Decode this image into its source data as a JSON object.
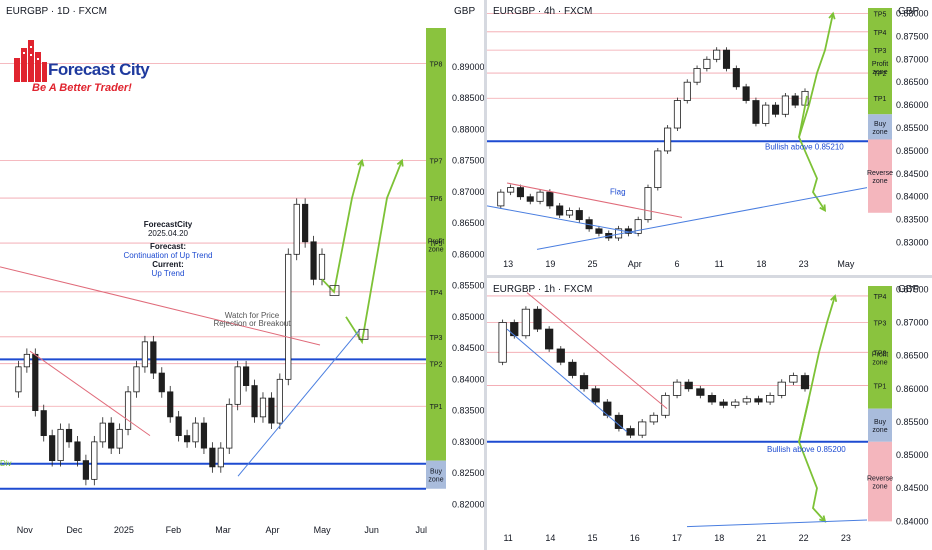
{
  "logo": {
    "brand": "Forecast City",
    "tagline": "Be A Better Trader!"
  },
  "chart_data": [
    {
      "type": "candlestick",
      "title": "EURGBP · 1D · FXCM",
      "currency_label": "GBP",
      "ylim": [
        0.8175,
        0.8962
      ],
      "y_ticks": [
        "0.89000",
        "0.88500",
        "0.88000",
        "0.87500",
        "0.87000",
        "0.86500",
        "0.86000",
        "0.85500",
        "0.85000",
        "0.84500",
        "0.84000",
        "0.83500",
        "0.83000",
        "0.82500",
        "0.82000"
      ],
      "x_ticks": [
        "Nov",
        "Dec",
        "2025",
        "Feb",
        "Mar",
        "Apr",
        "May",
        "Jun",
        "Jul"
      ],
      "target_levels": [
        {
          "label": "TP8",
          "value": 0.8905
        },
        {
          "label": "TP7",
          "value": 0.875
        },
        {
          "label": "TP6",
          "value": 0.869
        },
        {
          "label": "TP5",
          "value": 0.8618
        },
        {
          "label": "TP4",
          "value": 0.854
        },
        {
          "label": "TP3",
          "value": 0.8468
        },
        {
          "label": "TP2",
          "value": 0.8425
        },
        {
          "label": "TP1",
          "value": 0.8357
        }
      ],
      "zones": [
        {
          "label": "Profit zone",
          "from": 0.827,
          "to": 0.8962,
          "color": "#8ac33e"
        },
        {
          "label": "Buy zone",
          "from": 0.8225,
          "to": 0.827,
          "color": "#a9bcdc"
        }
      ],
      "support_lines": [
        0.8432,
        0.8265,
        0.8225
      ],
      "price_path": [
        0.838,
        0.842,
        0.844,
        0.835,
        0.831,
        0.827,
        0.832,
        0.83,
        0.827,
        0.824,
        0.83,
        0.833,
        0.829,
        0.832,
        0.838,
        0.842,
        0.846,
        0.841,
        0.838,
        0.834,
        0.831,
        0.83,
        0.833,
        0.829,
        0.826,
        0.829,
        0.836,
        0.842,
        0.839,
        0.834,
        0.837,
        0.833,
        0.84,
        0.86,
        0.868,
        0.862,
        0.856,
        0.86
      ],
      "annotations": {
        "header": "ForecastCity",
        "date": "2025.04.20",
        "forecast_label": "Forecast:",
        "forecast_value": "Continuation of Up Trend",
        "current_label": "Current:",
        "current_value": "Up Trend",
        "watch_line1": "Watch for Price",
        "watch_line2": "Rejection or Breakout",
        "div_label": "Div"
      }
    },
    {
      "type": "candlestick",
      "title": "EURGBP · 4h · FXCM",
      "currency_label": "GBP",
      "ylim": [
        0.8275,
        0.8812
      ],
      "y_ticks": [
        "0.88000",
        "0.87500",
        "0.87000",
        "0.86500",
        "0.86000",
        "0.85500",
        "0.85000",
        "0.84500",
        "0.84000",
        "0.83500",
        "0.83000"
      ],
      "x_ticks": [
        "13",
        "19",
        "25",
        "Apr",
        "6",
        "11",
        "18",
        "23",
        "May"
      ],
      "target_levels": [
        {
          "label": "TP5",
          "value": 0.88
        },
        {
          "label": "TP4",
          "value": 0.876
        },
        {
          "label": "TP3",
          "value": 0.872
        },
        {
          "label": "TP2",
          "value": 0.867
        },
        {
          "label": "TP1",
          "value": 0.8615
        }
      ],
      "zones": [
        {
          "label": "Profit zone",
          "from": 0.858,
          "to": 0.8812,
          "color": "#8ac33e"
        },
        {
          "label": "Buy zone",
          "from": 0.8525,
          "to": 0.858,
          "color": "#a9bcdc"
        },
        {
          "label": "Reverse zone",
          "from": 0.8365,
          "to": 0.8525,
          "color": "#f4b6bd"
        }
      ],
      "support_lines": [
        0.8521
      ],
      "price_path": [
        0.838,
        0.841,
        0.842,
        0.84,
        0.839,
        0.841,
        0.838,
        0.836,
        0.837,
        0.835,
        0.833,
        0.832,
        0.831,
        0.833,
        0.832,
        0.835,
        0.842,
        0.85,
        0.855,
        0.861,
        0.865,
        0.868,
        0.87,
        0.872,
        0.868,
        0.864,
        0.861,
        0.856,
        0.86,
        0.858,
        0.862,
        0.86,
        0.863
      ],
      "annotations": {
        "flag": "Flag",
        "bullish": "Bullish above 0.85210"
      }
    },
    {
      "type": "candlestick",
      "title": "EURGBP · 1h · FXCM",
      "currency_label": "GBP",
      "ylim": [
        0.839,
        0.8755
      ],
      "y_ticks": [
        "0.87500",
        "0.87000",
        "0.86500",
        "0.86000",
        "0.85500",
        "0.85000",
        "0.84500",
        "0.84000"
      ],
      "x_ticks": [
        "11",
        "14",
        "15",
        "16",
        "17",
        "18",
        "21",
        "22",
        "23"
      ],
      "target_levels": [
        {
          "label": "TP4",
          "value": 0.874
        },
        {
          "label": "TP3",
          "value": 0.87
        },
        {
          "label": "TP2",
          "value": 0.8655
        },
        {
          "label": "TP1",
          "value": 0.8605
        }
      ],
      "zones": [
        {
          "label": "Profit zone",
          "from": 0.857,
          "to": 0.8755,
          "color": "#8ac33e"
        },
        {
          "label": "Buy zone",
          "from": 0.852,
          "to": 0.857,
          "color": "#a9bcdc"
        },
        {
          "label": "Reverse zone",
          "from": 0.84,
          "to": 0.852,
          "color": "#f4b6bd"
        }
      ],
      "support_lines": [
        0.852
      ],
      "price_path": [
        0.864,
        0.87,
        0.868,
        0.872,
        0.869,
        0.866,
        0.864,
        0.862,
        0.86,
        0.858,
        0.856,
        0.854,
        0.853,
        0.855,
        0.856,
        0.859,
        0.861,
        0.86,
        0.859,
        0.858,
        0.8575,
        0.858,
        0.8585,
        0.858,
        0.859,
        0.861,
        0.862,
        0.86
      ],
      "annotations": {
        "bullish": "Bullish above 0.85200"
      }
    }
  ]
}
